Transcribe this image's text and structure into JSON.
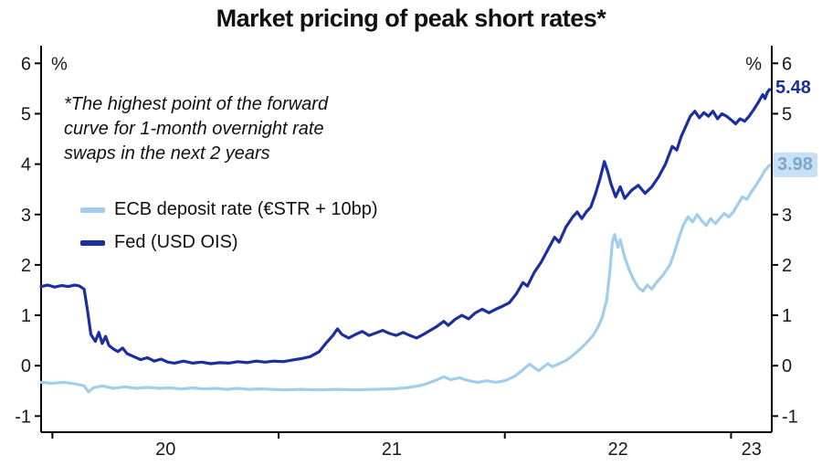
{
  "colors": {
    "fed": "#1b2f9e",
    "ecb": "#a3cdec",
    "ecb_label_bg": "#c8e0f5",
    "ecb_label_text": "#7fa6c9",
    "axis": "#000000"
  },
  "chart_data": {
    "type": "line",
    "title": "Market pricing of peak short rates*",
    "footnote_lines": [
      "*The highest point of the forward",
      "curve for 1-month overnight rate",
      "swaps in the next 2 years"
    ],
    "grid": false,
    "legend_position": "inside-left",
    "x_axis": {
      "min": 2019.95,
      "max": 2023.18,
      "tick_positions": [
        2020,
        2021,
        2022,
        2023
      ],
      "tick_labels": [
        "20",
        "21",
        "22",
        "23"
      ]
    },
    "y_axis": {
      "min": -1,
      "max": 6,
      "ticks": [
        6,
        5,
        4,
        3,
        2,
        1,
        0,
        -1
      ],
      "unit": "%"
    },
    "series": [
      {
        "name": "ECB deposit rate (€STR + 10bp)",
        "color": "#a3cdec",
        "end_label": "3.98",
        "end_value": 3.98,
        "points": [
          [
            2019.95,
            -0.33
          ],
          [
            2020.0,
            -0.35
          ],
          [
            2020.05,
            -0.33
          ],
          [
            2020.1,
            -0.36
          ],
          [
            2020.14,
            -0.4
          ],
          [
            2020.16,
            -0.52
          ],
          [
            2020.18,
            -0.44
          ],
          [
            2020.22,
            -0.4
          ],
          [
            2020.27,
            -0.45
          ],
          [
            2020.32,
            -0.42
          ],
          [
            2020.37,
            -0.45
          ],
          [
            2020.42,
            -0.43
          ],
          [
            2020.47,
            -0.45
          ],
          [
            2020.52,
            -0.44
          ],
          [
            2020.57,
            -0.46
          ],
          [
            2020.62,
            -0.44
          ],
          [
            2020.67,
            -0.46
          ],
          [
            2020.72,
            -0.45
          ],
          [
            2020.77,
            -0.47
          ],
          [
            2020.82,
            -0.45
          ],
          [
            2020.87,
            -0.47
          ],
          [
            2020.92,
            -0.46
          ],
          [
            2020.97,
            -0.47
          ],
          [
            2021.02,
            -0.48
          ],
          [
            2021.1,
            -0.47
          ],
          [
            2021.18,
            -0.48
          ],
          [
            2021.26,
            -0.47
          ],
          [
            2021.34,
            -0.48
          ],
          [
            2021.42,
            -0.47
          ],
          [
            2021.5,
            -0.46
          ],
          [
            2021.56,
            -0.44
          ],
          [
            2021.62,
            -0.4
          ],
          [
            2021.66,
            -0.35
          ],
          [
            2021.7,
            -0.28
          ],
          [
            2021.73,
            -0.22
          ],
          [
            2021.76,
            -0.28
          ],
          [
            2021.8,
            -0.24
          ],
          [
            2021.84,
            -0.3
          ],
          [
            2021.88,
            -0.33
          ],
          [
            2021.92,
            -0.3
          ],
          [
            2021.96,
            -0.33
          ],
          [
            2022.0,
            -0.3
          ],
          [
            2022.04,
            -0.22
          ],
          [
            2022.07,
            -0.12
          ],
          [
            2022.09,
            -0.04
          ],
          [
            2022.11,
            0.03
          ],
          [
            2022.13,
            -0.04
          ],
          [
            2022.15,
            -0.1
          ],
          [
            2022.17,
            -0.03
          ],
          [
            2022.19,
            0.04
          ],
          [
            2022.21,
            -0.02
          ],
          [
            2022.24,
            0.04
          ],
          [
            2022.27,
            0.1
          ],
          [
            2022.3,
            0.2
          ],
          [
            2022.33,
            0.32
          ],
          [
            2022.36,
            0.45
          ],
          [
            2022.39,
            0.6
          ],
          [
            2022.41,
            0.75
          ],
          [
            2022.43,
            0.95
          ],
          [
            2022.45,
            1.3
          ],
          [
            2022.465,
            1.9
          ],
          [
            2022.475,
            2.45
          ],
          [
            2022.485,
            2.6
          ],
          [
            2022.5,
            2.35
          ],
          [
            2022.51,
            2.5
          ],
          [
            2022.53,
            2.15
          ],
          [
            2022.55,
            1.9
          ],
          [
            2022.57,
            1.7
          ],
          [
            2022.59,
            1.55
          ],
          [
            2022.61,
            1.48
          ],
          [
            2022.63,
            1.6
          ],
          [
            2022.65,
            1.52
          ],
          [
            2022.67,
            1.65
          ],
          [
            2022.7,
            1.8
          ],
          [
            2022.73,
            2.0
          ],
          [
            2022.75,
            2.25
          ],
          [
            2022.77,
            2.55
          ],
          [
            2022.79,
            2.8
          ],
          [
            2022.81,
            2.95
          ],
          [
            2022.83,
            2.85
          ],
          [
            2022.85,
            3.0
          ],
          [
            2022.87,
            2.88
          ],
          [
            2022.89,
            2.78
          ],
          [
            2022.91,
            2.92
          ],
          [
            2022.93,
            2.82
          ],
          [
            2022.95,
            2.92
          ],
          [
            2022.97,
            3.02
          ],
          [
            2022.99,
            2.95
          ],
          [
            2023.01,
            3.05
          ],
          [
            2023.03,
            3.2
          ],
          [
            2023.05,
            3.35
          ],
          [
            2023.07,
            3.3
          ],
          [
            2023.09,
            3.45
          ],
          [
            2023.11,
            3.58
          ],
          [
            2023.13,
            3.72
          ],
          [
            2023.15,
            3.88
          ],
          [
            2023.16,
            3.92
          ],
          [
            2023.17,
            3.98
          ]
        ]
      },
      {
        "name": "Fed (USD OIS)",
        "color": "#1b2f9e",
        "end_label": "5.48",
        "end_value": 5.48,
        "points": [
          [
            2019.95,
            1.57
          ],
          [
            2019.98,
            1.6
          ],
          [
            2020.01,
            1.56
          ],
          [
            2020.04,
            1.59
          ],
          [
            2020.07,
            1.57
          ],
          [
            2020.1,
            1.6
          ],
          [
            2020.12,
            1.58
          ],
          [
            2020.14,
            1.52
          ],
          [
            2020.155,
            1.1
          ],
          [
            2020.17,
            0.62
          ],
          [
            2020.19,
            0.48
          ],
          [
            2020.205,
            0.66
          ],
          [
            2020.22,
            0.44
          ],
          [
            2020.235,
            0.58
          ],
          [
            2020.25,
            0.4
          ],
          [
            2020.27,
            0.33
          ],
          [
            2020.29,
            0.28
          ],
          [
            2020.31,
            0.35
          ],
          [
            2020.33,
            0.24
          ],
          [
            2020.36,
            0.18
          ],
          [
            2020.39,
            0.12
          ],
          [
            2020.42,
            0.16
          ],
          [
            2020.45,
            0.09
          ],
          [
            2020.48,
            0.13
          ],
          [
            2020.51,
            0.07
          ],
          [
            2020.54,
            0.05
          ],
          [
            2020.58,
            0.09
          ],
          [
            2020.62,
            0.05
          ],
          [
            2020.66,
            0.07
          ],
          [
            2020.7,
            0.04
          ],
          [
            2020.74,
            0.06
          ],
          [
            2020.78,
            0.05
          ],
          [
            2020.82,
            0.08
          ],
          [
            2020.86,
            0.06
          ],
          [
            2020.9,
            0.09
          ],
          [
            2020.94,
            0.07
          ],
          [
            2020.98,
            0.09
          ],
          [
            2021.02,
            0.08
          ],
          [
            2021.06,
            0.11
          ],
          [
            2021.1,
            0.14
          ],
          [
            2021.14,
            0.18
          ],
          [
            2021.18,
            0.28
          ],
          [
            2021.21,
            0.45
          ],
          [
            2021.24,
            0.6
          ],
          [
            2021.26,
            0.73
          ],
          [
            2021.28,
            0.62
          ],
          [
            2021.31,
            0.55
          ],
          [
            2021.34,
            0.62
          ],
          [
            2021.37,
            0.68
          ],
          [
            2021.4,
            0.6
          ],
          [
            2021.43,
            0.65
          ],
          [
            2021.46,
            0.7
          ],
          [
            2021.49,
            0.64
          ],
          [
            2021.52,
            0.6
          ],
          [
            2021.55,
            0.66
          ],
          [
            2021.58,
            0.6
          ],
          [
            2021.61,
            0.55
          ],
          [
            2021.64,
            0.62
          ],
          [
            2021.67,
            0.7
          ],
          [
            2021.7,
            0.78
          ],
          [
            2021.73,
            0.88
          ],
          [
            2021.75,
            0.8
          ],
          [
            2021.78,
            0.92
          ],
          [
            2021.81,
            1.0
          ],
          [
            2021.84,
            0.93
          ],
          [
            2021.87,
            1.05
          ],
          [
            2021.9,
            1.12
          ],
          [
            2021.93,
            1.05
          ],
          [
            2021.96,
            1.12
          ],
          [
            2021.99,
            1.18
          ],
          [
            2022.02,
            1.25
          ],
          [
            2022.05,
            1.42
          ],
          [
            2022.08,
            1.65
          ],
          [
            2022.1,
            1.58
          ],
          [
            2022.13,
            1.85
          ],
          [
            2022.16,
            2.05
          ],
          [
            2022.19,
            2.3
          ],
          [
            2022.22,
            2.55
          ],
          [
            2022.24,
            2.45
          ],
          [
            2022.27,
            2.75
          ],
          [
            2022.3,
            2.95
          ],
          [
            2022.32,
            3.05
          ],
          [
            2022.34,
            2.92
          ],
          [
            2022.36,
            3.05
          ],
          [
            2022.38,
            3.15
          ],
          [
            2022.4,
            3.4
          ],
          [
            2022.42,
            3.7
          ],
          [
            2022.44,
            4.05
          ],
          [
            2022.455,
            3.85
          ],
          [
            2022.47,
            3.6
          ],
          [
            2022.49,
            3.35
          ],
          [
            2022.51,
            3.55
          ],
          [
            2022.53,
            3.32
          ],
          [
            2022.56,
            3.48
          ],
          [
            2022.59,
            3.58
          ],
          [
            2022.62,
            3.42
          ],
          [
            2022.65,
            3.55
          ],
          [
            2022.68,
            3.75
          ],
          [
            2022.71,
            4.0
          ],
          [
            2022.74,
            4.35
          ],
          [
            2022.76,
            4.28
          ],
          [
            2022.78,
            4.55
          ],
          [
            2022.8,
            4.75
          ],
          [
            2022.82,
            4.95
          ],
          [
            2022.84,
            5.05
          ],
          [
            2022.86,
            4.92
          ],
          [
            2022.88,
            5.02
          ],
          [
            2022.9,
            4.95
          ],
          [
            2022.92,
            5.05
          ],
          [
            2022.94,
            4.9
          ],
          [
            2022.96,
            5.0
          ],
          [
            2022.98,
            4.95
          ],
          [
            2023.0,
            4.88
          ],
          [
            2023.02,
            4.8
          ],
          [
            2023.04,
            4.9
          ],
          [
            2023.06,
            4.85
          ],
          [
            2023.08,
            4.95
          ],
          [
            2023.1,
            5.08
          ],
          [
            2023.12,
            5.22
          ],
          [
            2023.14,
            5.38
          ],
          [
            2023.15,
            5.3
          ],
          [
            2023.16,
            5.42
          ],
          [
            2023.17,
            5.48
          ]
        ]
      }
    ]
  }
}
